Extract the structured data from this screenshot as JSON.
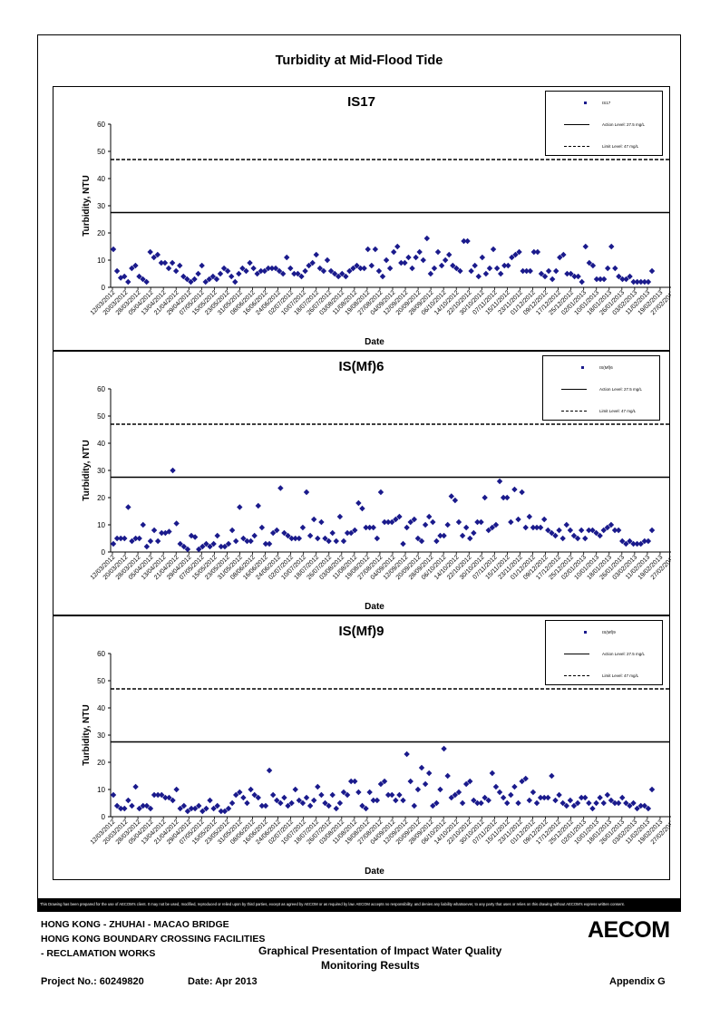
{
  "page_title": "Turbidity at Mid-Flood Tide",
  "disclaimer": "This Drawing has been prepared for the use of AECOM's client. It may not be used, modified, reproduced or relied upon by third parties, except as agreed by AECOM or as required by law. AECOM accepts no responsibility, and denies any liability whatsoever, to any party that uses or relies on this drawing without AECOM's express written consent.",
  "footer": {
    "line1": "HONG KONG - ZHUHAI - MACAO BRIDGE",
    "line2": "HONG KONG BOUNDARY CROSSING FACILITIES",
    "line3": "- RECLAMATION WORKS",
    "center_line1": "Graphical Presentation of Impact Water Quality",
    "center_line2": "Monitoring Results",
    "project": "Project No.: 60249820",
    "date": "Date: Apr 2013",
    "appendix": "Appendix G",
    "logo": "AECOM"
  },
  "colors": {
    "marker": "#1a1a8c",
    "lines": "#000000"
  },
  "chart_data": [
    {
      "type": "scatter",
      "title": "IS17",
      "xlabel": "Date",
      "ylabel": "Turbidity, NTU",
      "ylim": [
        0,
        60
      ],
      "yticks": [
        0,
        10,
        20,
        30,
        40,
        50,
        60
      ],
      "grid": false,
      "legend_position": "top-right",
      "x_tick_labels": [
        "12/03/2012",
        "20/03/2012",
        "28/03/2012",
        "05/04/2012",
        "13/04/2012",
        "21/04/2012",
        "29/04/2012",
        "07/05/2012",
        "15/05/2012",
        "23/05/2012",
        "31/05/2012",
        "08/06/2012",
        "16/06/2012",
        "24/06/2012",
        "02/07/2012",
        "10/07/2012",
        "18/07/2012",
        "26/07/2012",
        "03/08/2012",
        "11/08/2012",
        "19/08/2012",
        "27/08/2012",
        "04/09/2012",
        "12/09/2012",
        "20/09/2012",
        "28/09/2012",
        "06/10/2012",
        "14/10/2012",
        "22/10/2012",
        "30/10/2012",
        "07/11/2012",
        "15/11/2012",
        "23/11/2012",
        "01/12/2012",
        "09/12/2012",
        "17/12/2012",
        "25/12/2012",
        "02/01/2013",
        "10/01/2013",
        "18/01/2013",
        "26/01/2013",
        "03/02/2013",
        "11/02/2013",
        "19/02/2013",
        "27/02/2013"
      ],
      "series": [
        {
          "name": "IS17",
          "style": "markers",
          "values": [
            14,
            6,
            3.5,
            4,
            2,
            7,
            8,
            4,
            3,
            2,
            13,
            11,
            12,
            9,
            9,
            7,
            9,
            6,
            8,
            4,
            3,
            2,
            3,
            5,
            8,
            2,
            3,
            4,
            3,
            5,
            7,
            6,
            4,
            2,
            5,
            7,
            6,
            9,
            7,
            5,
            6,
            6,
            7,
            7,
            7,
            6,
            5,
            11,
            7,
            5,
            5,
            4,
            6,
            8,
            9,
            12,
            7,
            6,
            10,
            6,
            5,
            4,
            5,
            4,
            6,
            7,
            8,
            7,
            7,
            14,
            8,
            14,
            6,
            4,
            10,
            7,
            13,
            15,
            9,
            9,
            11,
            7,
            11,
            13,
            10,
            18,
            5,
            7,
            13,
            8,
            10,
            12,
            8,
            7,
            6,
            17,
            17,
            6,
            8,
            4,
            11,
            5,
            7,
            14,
            7,
            5,
            8,
            8,
            11,
            12,
            13,
            6,
            6,
            6,
            13,
            13,
            5,
            4,
            6,
            3,
            6,
            11,
            12,
            5,
            5,
            4,
            4,
            2,
            15,
            9,
            8,
            3,
            3,
            3,
            7,
            15,
            7,
            4,
            3,
            3,
            4,
            2,
            2,
            2,
            2,
            2,
            6
          ]
        },
        {
          "name": "Action Level: 27.5 mg/L",
          "style": "solid",
          "value": 27.5
        },
        {
          "name": "Limit Level: 47 mg/L",
          "style": "dashed",
          "value": 47
        }
      ]
    },
    {
      "type": "scatter",
      "title": "IS(Mf)6",
      "xlabel": "Date",
      "ylabel": "Turbidity, NTU",
      "ylim": [
        0,
        60
      ],
      "yticks": [
        0,
        10,
        20,
        30,
        40,
        50,
        60
      ],
      "grid": false,
      "legend_position": "top-right",
      "x_tick_labels": [
        "12/03/2012",
        "20/03/2012",
        "28/03/2012",
        "05/04/2012",
        "13/04/2012",
        "21/04/2012",
        "29/04/2012",
        "07/05/2012",
        "15/05/2012",
        "23/05/2012",
        "31/05/2012",
        "08/06/2012",
        "16/06/2012",
        "24/06/2012",
        "02/07/2012",
        "10/07/2012",
        "18/07/2012",
        "26/07/2012",
        "03/08/2012",
        "11/08/2012",
        "19/08/2012",
        "27/08/2012",
        "04/09/2012",
        "12/09/2012",
        "20/09/2012",
        "28/09/2012",
        "06/10/2012",
        "14/10/2012",
        "22/10/2012",
        "30/10/2012",
        "07/11/2012",
        "15/11/2012",
        "23/11/2012",
        "01/12/2012",
        "09/12/2012",
        "17/12/2012",
        "25/12/2012",
        "02/01/2013",
        "10/01/2013",
        "18/01/2013",
        "26/01/2013",
        "03/02/2013",
        "11/02/2013",
        "19/02/2013",
        "27/02/2013"
      ],
      "series": [
        {
          "name": "IS(Mf)6",
          "style": "markers",
          "values": [
            3,
            5,
            5,
            5,
            16.5,
            4,
            5,
            5,
            10,
            2,
            4,
            8,
            4,
            7,
            7,
            7.5,
            30,
            10.5,
            3,
            2,
            1,
            6,
            5.5,
            1,
            2,
            3,
            2,
            3,
            6,
            2,
            2,
            3,
            8,
            4,
            16.5,
            5,
            4,
            4,
            6,
            17,
            9,
            3,
            3,
            7,
            8,
            23.5,
            7,
            6,
            5,
            5,
            5,
            9,
            22,
            6,
            12,
            5,
            11,
            5,
            4,
            7,
            4,
            13,
            4,
            7,
            7,
            8,
            18,
            16,
            9,
            9,
            9,
            5,
            22,
            11,
            11,
            11,
            12,
            13,
            3,
            9,
            11,
            12,
            5,
            4,
            10,
            13,
            11,
            4,
            6,
            6,
            10,
            20.5,
            19,
            11,
            6,
            9,
            5,
            7,
            11,
            11,
            20,
            8,
            9,
            10,
            26,
            20,
            20,
            11,
            23,
            12,
            22,
            9,
            13,
            9,
            9,
            9,
            12,
            8,
            7,
            6,
            8,
            5,
            10,
            8,
            6,
            5,
            8,
            5,
            8,
            8,
            7,
            6,
            8,
            9,
            10,
            8,
            8,
            4,
            3,
            4,
            3,
            3,
            3,
            4,
            4,
            8
          ]
        },
        {
          "name": "Action Level: 27.5 mg/L",
          "style": "solid",
          "value": 27.5
        },
        {
          "name": "Limit Level: 47 mg/L",
          "style": "dashed",
          "value": 47
        }
      ]
    },
    {
      "type": "scatter",
      "title": "IS(Mf)9",
      "xlabel": "Date",
      "ylabel": "Turbidity, NTU",
      "ylim": [
        0,
        60
      ],
      "yticks": [
        0,
        10,
        20,
        30,
        40,
        50,
        60
      ],
      "grid": false,
      "legend_position": "top-right",
      "x_tick_labels": [
        "12/03/2012",
        "20/03/2012",
        "28/03/2012",
        "05/04/2012",
        "13/04/2012",
        "21/04/2012",
        "29/04/2012",
        "07/05/2012",
        "15/05/2012",
        "23/05/2012",
        "31/05/2012",
        "08/06/2012",
        "16/06/2012",
        "24/06/2012",
        "02/07/2012",
        "10/07/2012",
        "18/07/2012",
        "26/07/2012",
        "03/08/2012",
        "11/08/2012",
        "19/08/2012",
        "27/08/2012",
        "04/09/2012",
        "12/09/2012",
        "20/09/2012",
        "28/09/2012",
        "06/10/2012",
        "14/10/2012",
        "22/10/2012",
        "30/10/2012",
        "07/11/2012",
        "15/11/2012",
        "23/11/2012",
        "01/12/2012",
        "09/12/2012",
        "17/12/2012",
        "25/12/2012",
        "02/01/2013",
        "10/01/2013",
        "18/01/2013",
        "26/01/2013",
        "03/02/2013",
        "11/02/2013",
        "19/02/2013",
        "27/02/2013"
      ],
      "series": [
        {
          "name": "IS(Mf)9",
          "style": "markers",
          "values": [
            8,
            4,
            3,
            3,
            6,
            4,
            11,
            3,
            4,
            4,
            3,
            8,
            8,
            8,
            7,
            7,
            6,
            10,
            3,
            4,
            2,
            3,
            3,
            4,
            2,
            3,
            6,
            3,
            4,
            2,
            2,
            3,
            5,
            8,
            9,
            7,
            5,
            10,
            8,
            7,
            4,
            4,
            17,
            8,
            6,
            5,
            7,
            4,
            5,
            10,
            6,
            5,
            7,
            4,
            6,
            11,
            8,
            5,
            4,
            8,
            3,
            5,
            9,
            8,
            13,
            13,
            9,
            4,
            3,
            9,
            6,
            6,
            12,
            13,
            8,
            8,
            6,
            8,
            6,
            23,
            13,
            4,
            10,
            18,
            12,
            16,
            4,
            5,
            10,
            25,
            15,
            7,
            8,
            9,
            5,
            12,
            13,
            6,
            5,
            5,
            7,
            6,
            16,
            11,
            9,
            7,
            5,
            8,
            11,
            5,
            13,
            14,
            6,
            9,
            5,
            7,
            7,
            7,
            15,
            6,
            8,
            5,
            4,
            6,
            4,
            5,
            7,
            7,
            5,
            3,
            5,
            7,
            5,
            8,
            6,
            5,
            5,
            7,
            5,
            4,
            5,
            3,
            4,
            4,
            3,
            10
          ]
        },
        {
          "name": "Action Level: 27.5 mg/L",
          "style": "solid",
          "value": 27.5
        },
        {
          "name": "Limit Level: 47 mg/L",
          "style": "dashed",
          "value": 47
        }
      ]
    }
  ]
}
